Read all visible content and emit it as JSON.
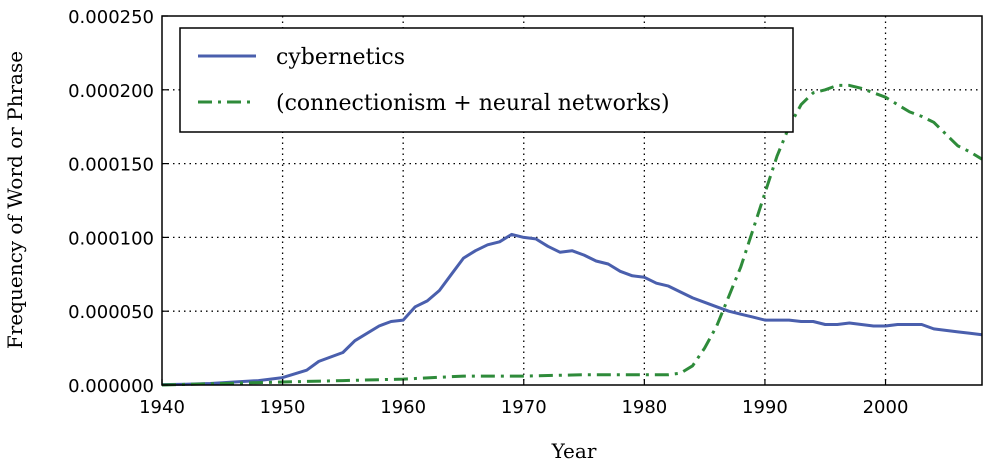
{
  "chart_data": {
    "type": "line",
    "title": "",
    "xlabel": "Year",
    "ylabel": "Frequency of Word or Phrase",
    "xlim": [
      1940,
      2008
    ],
    "ylim": [
      0,
      0.00025
    ],
    "xticks": [
      1940,
      1950,
      1960,
      1970,
      1980,
      1990,
      2000
    ],
    "xtick_labels": [
      "1940",
      "1950",
      "1960",
      "1970",
      "1980",
      "1990",
      "2000"
    ],
    "yticks": [
      0,
      5e-05,
      0.0001,
      0.00015,
      0.0002,
      0.00025
    ],
    "ytick_labels": [
      "0.000000",
      "0.000050",
      "0.000100",
      "0.000150",
      "0.000200",
      "0.000250"
    ],
    "grid": true,
    "grid_style": "dotted",
    "legend_position": "top-left",
    "series": [
      {
        "name": "cybernetics",
        "color": "#4a5fad",
        "style": "solid",
        "x": [
          1940,
          1942,
          1944,
          1946,
          1948,
          1950,
          1952,
          1953,
          1955,
          1956,
          1958,
          1959,
          1960,
          1961,
          1962,
          1963,
          1964,
          1965,
          1966,
          1967,
          1968,
          1969,
          1970,
          1971,
          1972,
          1973,
          1974,
          1975,
          1976,
          1977,
          1978,
          1979,
          1980,
          1981,
          1982,
          1983,
          1984,
          1985,
          1986,
          1987,
          1988,
          1989,
          1990,
          1991,
          1992,
          1993,
          1994,
          1995,
          1996,
          1997,
          1998,
          1999,
          2000,
          2001,
          2002,
          2003,
          2004,
          2005,
          2006,
          2007,
          2008
        ],
        "y": [
          3e-07,
          5e-07,
          1e-06,
          2e-06,
          3e-06,
          5e-06,
          1e-05,
          1.6e-05,
          2.2e-05,
          3e-05,
          4e-05,
          4.3e-05,
          4.4e-05,
          5.3e-05,
          5.7e-05,
          6.4e-05,
          7.5e-05,
          8.6e-05,
          9.1e-05,
          9.5e-05,
          9.7e-05,
          0.000102,
          0.0001,
          9.9e-05,
          9.4e-05,
          9e-05,
          9.1e-05,
          8.8e-05,
          8.4e-05,
          8.2e-05,
          7.7e-05,
          7.4e-05,
          7.3e-05,
          6.9e-05,
          6.7e-05,
          6.3e-05,
          5.9e-05,
          5.6e-05,
          5.3e-05,
          5e-05,
          4.8e-05,
          4.6e-05,
          4.4e-05,
          4.4e-05,
          4.4e-05,
          4.3e-05,
          4.3e-05,
          4.1e-05,
          4.1e-05,
          4.2e-05,
          4.1e-05,
          4e-05,
          4e-05,
          4.1e-05,
          4.1e-05,
          4.1e-05,
          3.8e-05,
          3.7e-05,
          3.6e-05,
          3.5e-05,
          3.4e-05
        ]
      },
      {
        "name": "(connectionism + neural networks)",
        "color": "#2e8b3a",
        "style": "dashdot",
        "x": [
          1940,
          1945,
          1950,
          1955,
          1960,
          1965,
          1970,
          1975,
          1980,
          1982,
          1983,
          1984,
          1985,
          1986,
          1987,
          1988,
          1989,
          1990,
          1991,
          1992,
          1993,
          1994,
          1995,
          1996,
          1997,
          1998,
          1999,
          2000,
          2001,
          2002,
          2003,
          2004,
          2005,
          2006,
          2007,
          2008
        ],
        "y": [
          0,
          1e-06,
          2e-06,
          3e-06,
          4e-06,
          6e-06,
          6e-06,
          7e-06,
          7e-06,
          7e-06,
          8e-06,
          1.3e-05,
          2.5e-05,
          4e-05,
          6e-05,
          8e-05,
          0.000105,
          0.00013,
          0.000155,
          0.000175,
          0.00019,
          0.000198,
          0.0002,
          0.000203,
          0.000203,
          0.000201,
          0.000198,
          0.000195,
          0.00019,
          0.000185,
          0.000182,
          0.000178,
          0.00017,
          0.000162,
          0.000158,
          0.000153
        ]
      }
    ]
  }
}
